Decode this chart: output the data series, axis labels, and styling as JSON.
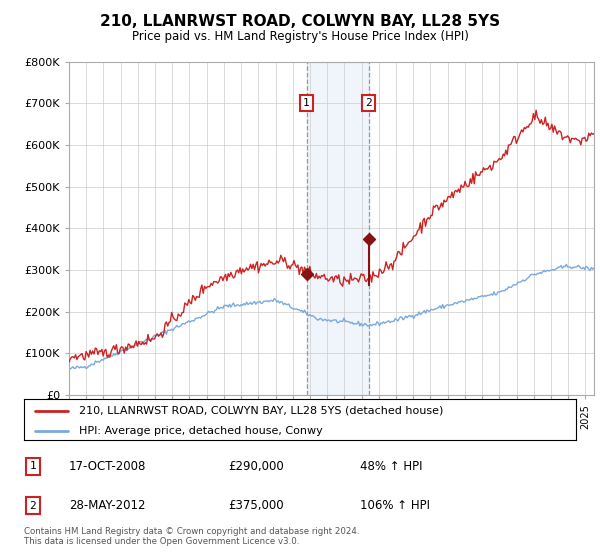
{
  "title": "210, LLANRWST ROAD, COLWYN BAY, LL28 5YS",
  "subtitle": "Price paid vs. HM Land Registry's House Price Index (HPI)",
  "legend_line1": "210, LLANRWST ROAD, COLWYN BAY, LL28 5YS (detached house)",
  "legend_line2": "HPI: Average price, detached house, Conwy",
  "annotation1_label": "1",
  "annotation1_date": "17-OCT-2008",
  "annotation1_price": "£290,000",
  "annotation1_hpi": "48% ↑ HPI",
  "annotation2_label": "2",
  "annotation2_date": "28-MAY-2012",
  "annotation2_price": "£375,000",
  "annotation2_hpi": "106% ↑ HPI",
  "footer": "Contains HM Land Registry data © Crown copyright and database right 2024.\nThis data is licensed under the Open Government Licence v3.0.",
  "hpi_color": "#7aaadd",
  "price_color": "#cc2222",
  "marker_color": "#881111",
  "annotation_bg": "#ddeeff",
  "background_color": "#ffffff",
  "grid_color": "#cccccc",
  "ylim": [
    0,
    800000
  ],
  "purchase1_year": 2008.8,
  "purchase1_value": 290000,
  "purchase2_year": 2012.4,
  "purchase2_value": 375000
}
